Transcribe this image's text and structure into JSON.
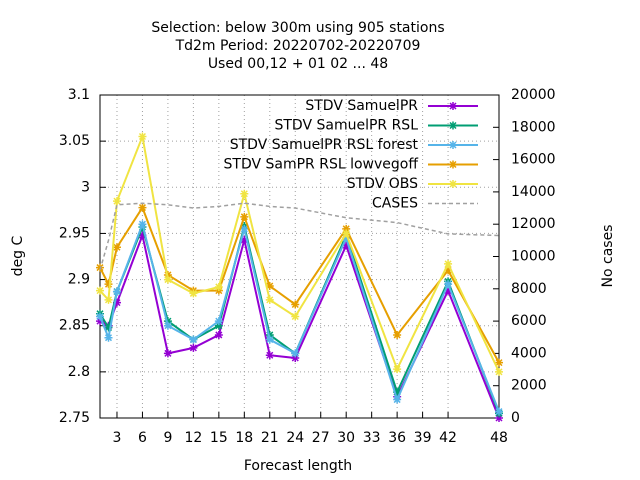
{
  "chart_data": {
    "type": "line",
    "title": [
      "Selection: below 300m using   905 stations",
      "Td2m   Period: 20220702-20220709",
      "Used  00,12  + 01 02 ... 48"
    ],
    "xlabel": "Forecast length",
    "ylabel": "deg C",
    "y2label": "No cases",
    "x": [
      1,
      2,
      3,
      6,
      9,
      12,
      15,
      18,
      21,
      24,
      30,
      36,
      42,
      48
    ],
    "xlim": [
      1,
      48
    ],
    "xticks": [
      3,
      6,
      9,
      12,
      15,
      18,
      21,
      24,
      27,
      30,
      33,
      36,
      39,
      42,
      48
    ],
    "ylim": [
      2.75,
      3.1
    ],
    "yticks": [
      2.75,
      2.8,
      2.85,
      2.9,
      2.95,
      3,
      3.05,
      3.1
    ],
    "y2lim": [
      0,
      20000
    ],
    "y2ticks": [
      0,
      2000,
      4000,
      6000,
      8000,
      10000,
      12000,
      14000,
      16000,
      18000,
      20000
    ],
    "grid": true,
    "legend": "top-right",
    "series": [
      {
        "name": "STDV SamuelPR",
        "color": "#9400d3",
        "values": [
          2.855,
          2.85,
          2.875,
          2.948,
          2.82,
          2.826,
          2.84,
          2.943,
          2.818,
          2.815,
          2.937,
          2.773,
          2.888,
          2.75
        ]
      },
      {
        "name": "STDV SamuelPR RSL",
        "color": "#009e73",
        "values": [
          2.863,
          2.848,
          2.887,
          2.957,
          2.855,
          2.835,
          2.85,
          2.958,
          2.84,
          2.82,
          2.948,
          2.778,
          2.898,
          2.755
        ]
      },
      {
        "name": "STDV SamuelPR RSL forest",
        "color": "#56b4e9",
        "values": [
          2.86,
          2.837,
          2.887,
          2.96,
          2.85,
          2.835,
          2.855,
          2.955,
          2.835,
          2.82,
          2.945,
          2.77,
          2.895,
          2.757
        ]
      },
      {
        "name": "STDV SamPR RSL lowvegoff",
        "color": "#e69f00",
        "values": [
          2.913,
          2.895,
          2.935,
          2.978,
          2.905,
          2.888,
          2.888,
          2.968,
          2.893,
          2.873,
          2.955,
          2.84,
          2.91,
          2.81
        ]
      },
      {
        "name": "STDV OBS",
        "color": "#f0e442",
        "values": [
          2.888,
          2.878,
          2.985,
          3.055,
          2.9,
          2.885,
          2.892,
          2.993,
          2.878,
          2.86,
          2.95,
          2.803,
          2.917,
          2.8
        ]
      },
      {
        "name": "CASES",
        "color": "#a0a0a0",
        "axis": "y2",
        "dashed": true,
        "values": [
          9160,
          11000,
          13200,
          13300,
          13200,
          13000,
          13100,
          13300,
          13100,
          13000,
          12400,
          12100,
          11400,
          11300
        ]
      }
    ]
  }
}
